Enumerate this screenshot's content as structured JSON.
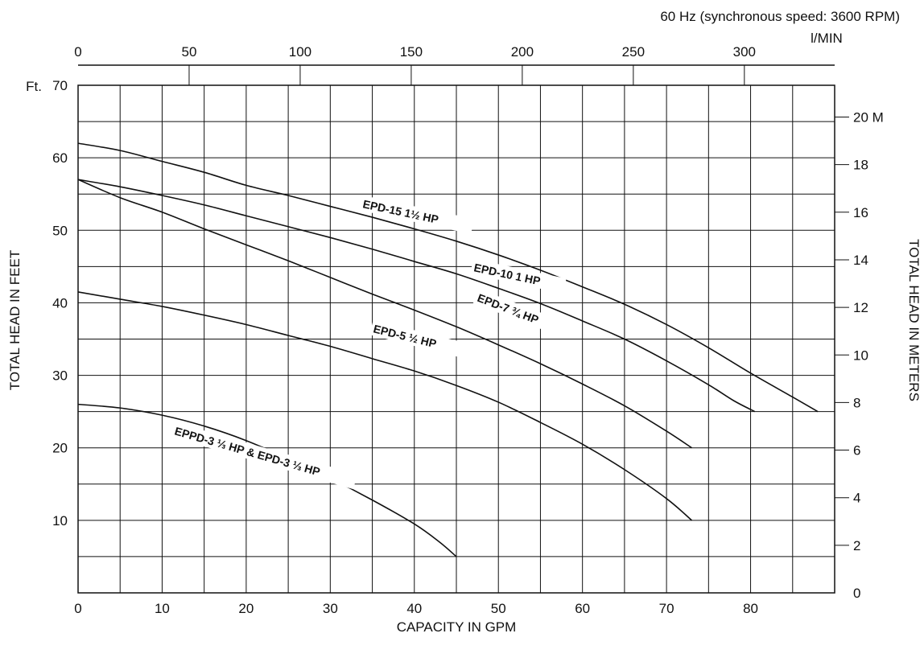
{
  "chart_data": {
    "type": "line",
    "title": "60 Hz (synchronous speed: 3600 RPM)",
    "xlabel": "CAPACITY IN GPM",
    "ylabel": "TOTAL HEAD IN FEET",
    "y2label": "TOTAL HEAD IN METERS",
    "x2label": "l/MIN",
    "y_unit_prefix": "Ft.",
    "y2_unit_suffix": "M",
    "xlim": [
      0,
      90
    ],
    "ylim": [
      0,
      70
    ],
    "x_ticks": [
      0,
      10,
      20,
      30,
      40,
      50,
      60,
      70,
      80
    ],
    "y_ticks": [
      10,
      20,
      30,
      40,
      50,
      60,
      70
    ],
    "x2_ticks": [
      0,
      50,
      100,
      150,
      200,
      250,
      300
    ],
    "y2_ticks": [
      0,
      2,
      4,
      6,
      8,
      10,
      12,
      14,
      16,
      18,
      20
    ],
    "grid": true,
    "series": [
      {
        "name": "EPD-15 1½ HP",
        "x": [
          0,
          5,
          10,
          15,
          20,
          25,
          30,
          35,
          40,
          45,
          50,
          55,
          60,
          65,
          70,
          75,
          80,
          85,
          88
        ],
        "y": [
          62,
          61,
          59.5,
          58,
          56.2,
          54.8,
          53.3,
          51.8,
          50.2,
          48.5,
          46.6,
          44.5,
          42.2,
          39.8,
          37,
          33.8,
          30.3,
          27,
          25
        ]
      },
      {
        "name": "EPD-10 1 HP",
        "x": [
          0,
          5,
          10,
          15,
          20,
          25,
          30,
          35,
          40,
          45,
          50,
          55,
          60,
          65,
          70,
          75,
          78,
          80.5
        ],
        "y": [
          57,
          56,
          54.8,
          53.5,
          52,
          50.5,
          49,
          47.4,
          45.7,
          44,
          42,
          39.9,
          37.5,
          35,
          32,
          28.7,
          26.5,
          25
        ]
      },
      {
        "name": "EPD-7 ¾ HP",
        "x": [
          0,
          5,
          10,
          15,
          20,
          25,
          30,
          35,
          40,
          45,
          50,
          55,
          60,
          65,
          70,
          73
        ],
        "y": [
          57,
          54.5,
          52.5,
          50.2,
          48,
          45.8,
          43.5,
          41.2,
          39,
          36.7,
          34.2,
          31.6,
          28.8,
          25.8,
          22.3,
          20
        ]
      },
      {
        "name": "EPD-5 ½ HP",
        "x": [
          0,
          5,
          10,
          15,
          20,
          25,
          30,
          35,
          40,
          45,
          50,
          55,
          60,
          65,
          70,
          73
        ],
        "y": [
          41.5,
          40.5,
          39.5,
          38.3,
          37,
          35.5,
          34,
          32.3,
          30.6,
          28.6,
          26.3,
          23.5,
          20.5,
          17,
          13,
          10
        ]
      },
      {
        "name": "EPPD-3 ⅓ HP & EPD-3 ⅓ HP",
        "x": [
          0,
          5,
          10,
          15,
          20,
          25,
          30,
          35,
          40,
          43,
          45
        ],
        "y": [
          26,
          25.5,
          24.5,
          23,
          21,
          18.5,
          15.8,
          12.8,
          9.5,
          7,
          5
        ]
      }
    ]
  }
}
